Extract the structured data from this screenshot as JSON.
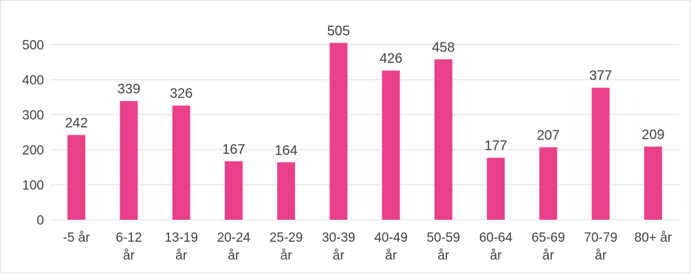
{
  "chart_data": {
    "type": "bar",
    "title": "",
    "xlabel": "",
    "ylabel": "",
    "categories": [
      [
        "-5 år"
      ],
      [
        "6-12",
        "år"
      ],
      [
        "13-19",
        "år"
      ],
      [
        "20-24",
        "år"
      ],
      [
        "25-29",
        "år"
      ],
      [
        "30-39",
        "år"
      ],
      [
        "40-49",
        "år"
      ],
      [
        "50-59",
        "år"
      ],
      [
        "60-64",
        "år"
      ],
      [
        "65-69",
        "år"
      ],
      [
        "70-79",
        "år"
      ],
      [
        "80+ år"
      ]
    ],
    "values": [
      242,
      339,
      326,
      167,
      164,
      505,
      426,
      458,
      177,
      207,
      377,
      209
    ],
    "ylim": [
      0,
      500
    ],
    "yticks": [
      0,
      100,
      200,
      300,
      400,
      500
    ],
    "grid": true,
    "legend": "none",
    "bar_color": "#E8418A",
    "grid_color": "#d9d9d9",
    "text_color": "#404040"
  }
}
